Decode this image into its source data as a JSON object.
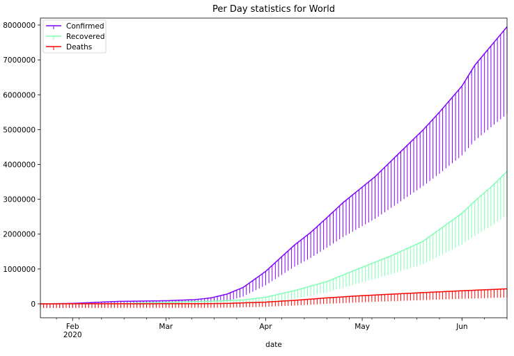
{
  "chart_data": {
    "type": "line",
    "title": "Per Day statistics for World",
    "xlabel": "date",
    "ylabel": "",
    "x_start": "2020-01-22",
    "x_end": "2020-06-15",
    "xlim": [
      "2020-01-22",
      "2020-06-15"
    ],
    "ylim": [
      -400000,
      8200000
    ],
    "x_ticks": [
      {
        "date": "2020-02-01",
        "label": "Feb",
        "sublabel": "2020"
      },
      {
        "date": "2020-03-01",
        "label": "Mar",
        "sublabel": ""
      },
      {
        "date": "2020-04-01",
        "label": "Apr",
        "sublabel": ""
      },
      {
        "date": "2020-05-01",
        "label": "May",
        "sublabel": ""
      },
      {
        "date": "2020-06-01",
        "label": "Jun",
        "sublabel": ""
      }
    ],
    "y_ticks": [
      0,
      1000000,
      2000000,
      3000000,
      4000000,
      5000000,
      6000000,
      7000000,
      8000000
    ],
    "y_tick_labels": [
      "0",
      "1000000",
      "2000000",
      "3000000",
      "4000000",
      "5000000",
      "6000000",
      "7000000",
      "8000000"
    ],
    "legend_position": "top-left",
    "grid": false,
    "error_bars": "lower caps on every daily point",
    "series": [
      {
        "name": "Confirmed",
        "color": "#8000ff",
        "points": [
          [
            "2020-01-22",
            0
          ],
          [
            "2020-02-01",
            12000
          ],
          [
            "2020-02-15",
            69000
          ],
          [
            "2020-03-01",
            89000
          ],
          [
            "2020-03-10",
            120000
          ],
          [
            "2020-03-15",
            170000
          ],
          [
            "2020-03-20",
            280000
          ],
          [
            "2020-03-25",
            470000
          ],
          [
            "2020-04-01",
            930000
          ],
          [
            "2020-04-05",
            1270000
          ],
          [
            "2020-04-10",
            1690000
          ],
          [
            "2020-04-15",
            2050000
          ],
          [
            "2020-04-20",
            2470000
          ],
          [
            "2020-04-25",
            2900000
          ],
          [
            "2020-05-01",
            3350000
          ],
          [
            "2020-05-05",
            3650000
          ],
          [
            "2020-05-10",
            4100000
          ],
          [
            "2020-05-15",
            4550000
          ],
          [
            "2020-05-20",
            5000000
          ],
          [
            "2020-05-25",
            5500000
          ],
          [
            "2020-06-01",
            6250000
          ],
          [
            "2020-06-05",
            6850000
          ],
          [
            "2020-06-10",
            7400000
          ],
          [
            "2020-06-15",
            7950000
          ]
        ]
      },
      {
        "name": "Recovered",
        "color": "#80ffb4",
        "points": [
          [
            "2020-01-22",
            0
          ],
          [
            "2020-02-15",
            5000
          ],
          [
            "2020-03-01",
            42000
          ],
          [
            "2020-03-15",
            75000
          ],
          [
            "2020-03-25",
            110000
          ],
          [
            "2020-04-01",
            190000
          ],
          [
            "2020-04-10",
            380000
          ],
          [
            "2020-04-20",
            640000
          ],
          [
            "2020-05-01",
            1050000
          ],
          [
            "2020-05-10",
            1380000
          ],
          [
            "2020-05-20",
            1800000
          ],
          [
            "2020-06-01",
            2600000
          ],
          [
            "2020-06-05",
            2950000
          ],
          [
            "2020-06-10",
            3350000
          ],
          [
            "2020-06-15",
            3800000
          ]
        ]
      },
      {
        "name": "Deaths",
        "color": "#ff0000",
        "points": [
          [
            "2020-01-22",
            0
          ],
          [
            "2020-02-15",
            1500
          ],
          [
            "2020-03-01",
            3000
          ],
          [
            "2020-03-15",
            6000
          ],
          [
            "2020-03-20",
            12000
          ],
          [
            "2020-04-01",
            50000
          ],
          [
            "2020-04-10",
            100000
          ],
          [
            "2020-04-20",
            170000
          ],
          [
            "2020-05-01",
            235000
          ],
          [
            "2020-05-15",
            300000
          ],
          [
            "2020-06-01",
            375000
          ],
          [
            "2020-06-15",
            430000
          ]
        ]
      }
    ]
  }
}
